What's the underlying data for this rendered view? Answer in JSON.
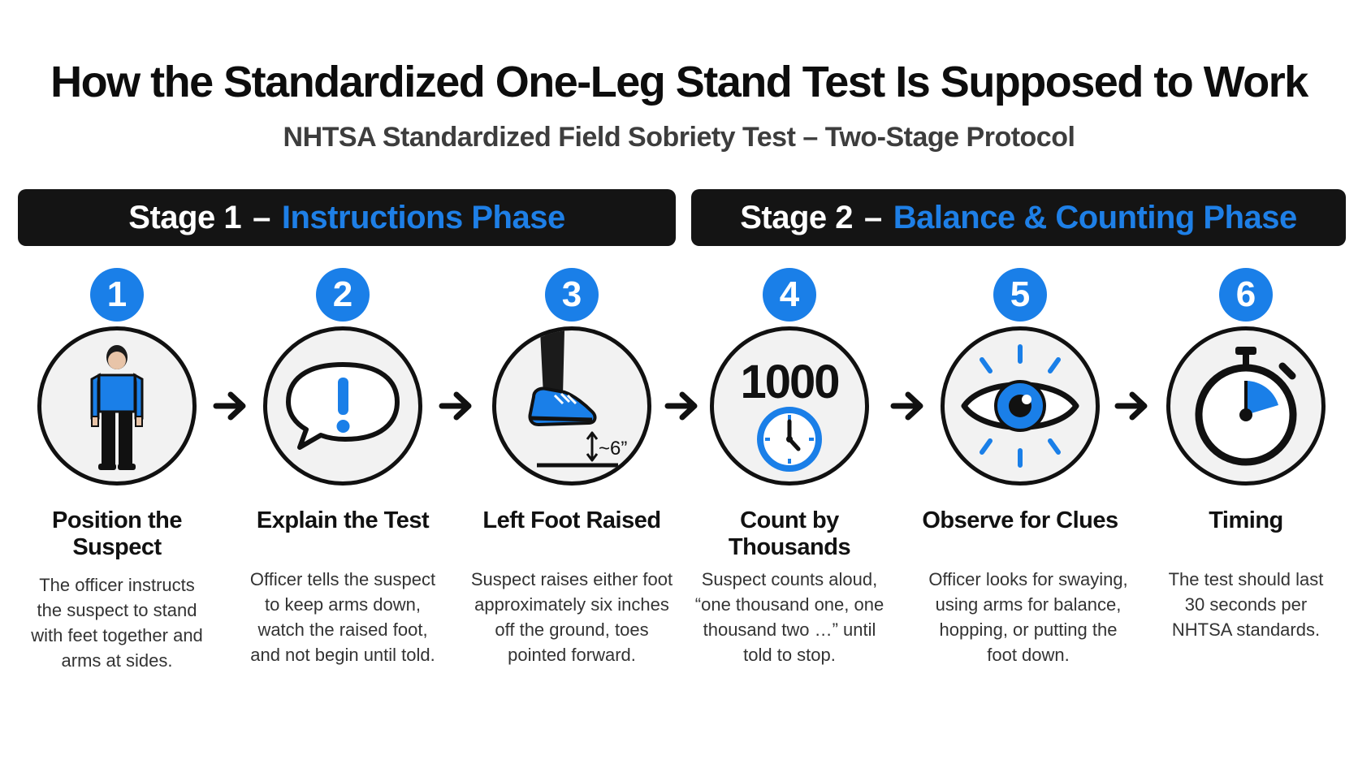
{
  "header": {
    "title": "How the Standardized One-Leg Stand Test Is Supposed to Work",
    "subtitle": "NHTSA Standardized Field Sobriety Test – Two-Stage Protocol"
  },
  "stages": [
    {
      "prefix": "Stage 1",
      "dash": "–",
      "name": "Instructions Phase"
    },
    {
      "prefix": "Stage 2",
      "dash": "–",
      "name": "Balance & Counting Phase"
    }
  ],
  "steps": [
    {
      "number": "1",
      "icon": "person-icon",
      "title": "Position the Suspect",
      "desc": "The officer instructs the suspect to stand with feet together and arms at sides."
    },
    {
      "number": "2",
      "icon": "speech-bubble-exclamation-icon",
      "title": "Explain the Test",
      "desc": "Officer tells the suspect to keep arms down, watch the raised foot, and not begin until told."
    },
    {
      "number": "3",
      "icon": "raised-foot-icon",
      "title": "Left Foot Raised",
      "desc": "Suspect raises either foot approximately six inches off the ground, toes pointed forward.",
      "measure": "~6”"
    },
    {
      "number": "4",
      "icon": "clock-icon",
      "title": "Count by Thousands",
      "desc": "Suspect counts aloud, “one thousand one, one thousand two …” until told to stop.",
      "count": "1000"
    },
    {
      "number": "5",
      "icon": "eye-icon",
      "title": "Observe for Clues",
      "desc": "Officer looks for swaying, using arms for balance, hopping, or putting the foot down."
    },
    {
      "number": "6",
      "icon": "stopwatch-icon",
      "title": "Timing",
      "desc": "The test should last 30 seconds per NHTSA standards."
    }
  ],
  "colors": {
    "accent": "#1a7fe8",
    "bar": "#141414",
    "ring_fill": "#f2f2f2"
  }
}
